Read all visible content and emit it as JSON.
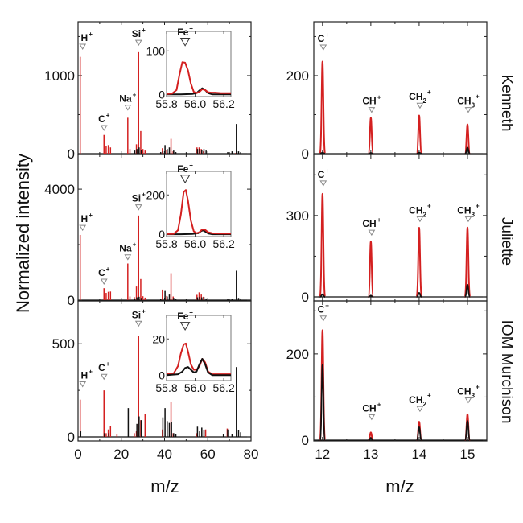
{
  "figure": {
    "ylabel": "Normalized intensity",
    "xlabel_left": "m/z",
    "xlabel_right": "m/z",
    "colors": {
      "sample": "#d42020",
      "reference": "#111111",
      "marker": "#888888"
    }
  },
  "chart_data": [
    {
      "type": "bar",
      "panel": "left-top",
      "sample": "Kenneth",
      "xlim": [
        0,
        80
      ],
      "ylim": [
        0,
        1690
      ],
      "xticks": [
        0,
        20,
        40,
        60,
        80
      ],
      "yticks": [
        0,
        1000
      ],
      "ytick_labels": [
        "0",
        "1000"
      ],
      "series": [
        {
          "name": "sample",
          "color": "red",
          "x": [
            1,
            12,
            13,
            14,
            15,
            23,
            24,
            26,
            27,
            28,
            29,
            30,
            31,
            39,
            41,
            43,
            44,
            55,
            56,
            57,
            58,
            73
          ],
          "values": [
            1240,
            240,
            100,
            110,
            80,
            460,
            60,
            30,
            120,
            1300,
            290,
            60,
            40,
            70,
            50,
            190,
            30,
            80,
            80,
            60,
            30,
            10
          ]
        },
        {
          "name": "reference",
          "color": "black",
          "x": [
            26,
            27,
            28,
            29,
            38,
            39,
            40,
            41,
            42,
            44,
            45,
            50,
            55,
            56,
            57,
            58,
            59,
            69,
            71,
            73,
            74,
            75
          ],
          "values": [
            40,
            60,
            80,
            50,
            20,
            30,
            110,
            60,
            80,
            40,
            20,
            10,
            60,
            60,
            50,
            60,
            40,
            20,
            30,
            380,
            30,
            20
          ]
        }
      ],
      "annotations": [
        {
          "ion": "H",
          "charge": "+",
          "x": 1,
          "marker_y": 1340
        },
        {
          "ion": "C",
          "charge": "+",
          "x": 12,
          "marker_y": 300
        },
        {
          "ion": "Na",
          "charge": "+",
          "x": 23,
          "marker_y": 560
        },
        {
          "ion": "Si",
          "charge": "+",
          "x": 28,
          "marker_y": 1390
        }
      ],
      "inset": {
        "type": "line",
        "title": "Fe",
        "charge": "+",
        "xlim": [
          55.8,
          56.25
        ],
        "ylim": [
          -5,
          145
        ],
        "xticks": [
          55.8,
          56.0,
          56.2
        ],
        "xtick_labels": [
          "55.8",
          "56.0",
          "56.2"
        ],
        "yticks": [
          0,
          100
        ],
        "ytick_labels": [
          "0",
          "100"
        ],
        "marker_x": 55.93,
        "marker_y": 112,
        "series": [
          {
            "name": "sample",
            "color": "red",
            "x": [
              55.8,
              55.84,
              55.87,
              55.89,
              55.91,
              55.93,
              55.95,
              55.97,
              55.99,
              56.01,
              56.03,
              56.05,
              56.07,
              56.09,
              56.11,
              56.14,
              56.18,
              56.22,
              56.25
            ],
            "values": [
              1,
              2,
              10,
              45,
              74,
              73,
              55,
              25,
              6,
              3,
              6,
              12,
              10,
              5,
              4,
              4,
              3,
              3,
              3
            ]
          },
          {
            "name": "reference",
            "color": "black",
            "x": [
              55.8,
              55.9,
              55.98,
              56.01,
              56.03,
              56.05,
              56.07,
              56.09,
              56.12,
              56.18,
              56.25
            ],
            "values": [
              0,
              0,
              1,
              3,
              9,
              14,
              10,
              3,
              0,
              0,
              0
            ]
          }
        ]
      }
    },
    {
      "type": "bar",
      "panel": "left-middle",
      "sample": "Juliette",
      "xlim": [
        0,
        80
      ],
      "ylim": [
        0,
        5250
      ],
      "xticks": [
        0,
        20,
        40,
        60,
        80
      ],
      "yticks": [
        0,
        4000
      ],
      "ytick_labels": [
        "0",
        "4000"
      ],
      "series": [
        {
          "name": "sample",
          "color": "red",
          "x": [
            1,
            12,
            13,
            14,
            15,
            23,
            24,
            26,
            27,
            28,
            29,
            30,
            31,
            39,
            41,
            43,
            44,
            55,
            56,
            57,
            58
          ],
          "values": [
            2350,
            430,
            260,
            300,
            310,
            1320,
            130,
            110,
            490,
            3050,
            760,
            140,
            90,
            380,
            150,
            970,
            130,
            190,
            280,
            200,
            120
          ]
        },
        {
          "name": "reference",
          "color": "black",
          "x": [
            26,
            27,
            28,
            29,
            38,
            39,
            40,
            41,
            42,
            44,
            45,
            50,
            55,
            56,
            57,
            58,
            59,
            69,
            71,
            73,
            74,
            75
          ],
          "values": [
            60,
            100,
            120,
            80,
            40,
            60,
            330,
            130,
            200,
            80,
            40,
            20,
            100,
            120,
            100,
            110,
            60,
            30,
            50,
            1060,
            80,
            60
          ]
        }
      ],
      "annotations": [
        {
          "ion": "H",
          "charge": "+",
          "x": 1,
          "marker_y": 2520
        },
        {
          "ion": "C",
          "charge": "+",
          "x": 12,
          "marker_y": 580
        },
        {
          "ion": "Na",
          "charge": "+",
          "x": 23,
          "marker_y": 1460
        },
        {
          "ion": "Si",
          "charge": "+",
          "x": 28,
          "marker_y": 3260
        }
      ],
      "inset": {
        "type": "line",
        "title": "Fe",
        "charge": "+",
        "xlim": [
          55.8,
          56.25
        ],
        "ylim": [
          -12,
          320
        ],
        "xticks": [
          55.8,
          56.0,
          56.2
        ],
        "xtick_labels": [
          "55.8",
          "56.0",
          "56.2"
        ],
        "yticks": [
          0,
          200
        ],
        "ytick_labels": [
          "0",
          "200"
        ],
        "marker_x": 55.93,
        "marker_y": 262,
        "series": [
          {
            "name": "sample",
            "color": "red",
            "x": [
              55.8,
              55.85,
              55.88,
              55.9,
              55.92,
              55.935,
              55.95,
              55.97,
              55.99,
              56.01,
              56.03,
              56.05,
              56.07,
              56.09,
              56.12,
              56.16,
              56.2,
              56.25
            ],
            "values": [
              1,
              2,
              20,
              100,
              215,
              225,
              170,
              70,
              15,
              5,
              10,
              25,
              22,
              10,
              5,
              4,
              3,
              3
            ]
          },
          {
            "name": "reference",
            "color": "black",
            "x": [
              55.8,
              55.9,
              55.98,
              56.02,
              56.04,
              56.055,
              56.07,
              56.09,
              56.12,
              56.18,
              56.25
            ],
            "values": [
              0,
              0,
              1,
              5,
              15,
              20,
              14,
              4,
              0,
              0,
              0
            ]
          }
        ]
      }
    },
    {
      "type": "bar",
      "panel": "left-bottom",
      "sample": "IOM Murchison",
      "xlim": [
        0,
        80
      ],
      "ylim": [
        0,
        730
      ],
      "xticks": [
        0,
        20,
        40,
        60,
        80
      ],
      "xtick_labels": [
        "0",
        "20",
        "40",
        "60",
        "80"
      ],
      "yticks": [
        0,
        500
      ],
      "ytick_labels": [
        "0",
        "500"
      ],
      "series": [
        {
          "name": "sample",
          "color": "red",
          "x": [
            1,
            12,
            13,
            14,
            15,
            18,
            26,
            27,
            28,
            29,
            31,
            39,
            43,
            44,
            55,
            59,
            69
          ],
          "values": [
            200,
            250,
            20,
            40,
            60,
            15,
            20,
            30,
            540,
            90,
            125,
            40,
            190,
            20,
            20,
            40,
            45
          ]
        },
        {
          "name": "reference",
          "color": "black",
          "x": [
            1,
            12,
            14,
            23,
            27,
            28,
            29,
            39,
            40,
            41,
            42,
            43,
            44,
            45,
            55,
            56,
            57,
            58,
            67,
            69,
            71,
            73,
            74,
            75
          ],
          "values": [
            30,
            20,
            20,
            155,
            70,
            110,
            90,
            105,
            155,
            85,
            75,
            80,
            20,
            15,
            55,
            30,
            50,
            35,
            15,
            40,
            15,
            375,
            35,
            25
          ]
        }
      ],
      "annotations": [
        {
          "ion": "H",
          "charge": "+",
          "x": 1,
          "marker_y": 270
        },
        {
          "ion": "C",
          "charge": "+",
          "x": 12,
          "marker_y": 310
        },
        {
          "ion": "Si",
          "charge": "+",
          "x": 28,
          "marker_y": 595
        }
      ],
      "inset": {
        "type": "line",
        "title": "Fe",
        "charge": "+",
        "xlim": [
          55.8,
          56.25
        ],
        "ylim": [
          -3,
          33
        ],
        "xticks": [
          55.8,
          56.0,
          56.2
        ],
        "xtick_labels": [
          "55.8",
          "56.0",
          "56.2"
        ],
        "yticks": [
          0,
          20
        ],
        "ytick_labels": [
          "0",
          "20"
        ],
        "marker_x": 55.93,
        "marker_y": 25,
        "series": [
          {
            "name": "sample",
            "color": "red",
            "x": [
              55.8,
              55.85,
              55.88,
              55.9,
              55.92,
              55.935,
              55.95,
              55.97,
              55.99,
              56.01,
              56.03,
              56.05,
              56.07,
              56.09,
              56.12,
              56.16,
              56.2,
              56.25
            ],
            "values": [
              0.5,
              1,
              5,
              12,
              17,
              17.5,
              13,
              6,
              3,
              3,
              5,
              9,
              7,
              2,
              0.5,
              0.5,
              0.5,
              0.5
            ]
          },
          {
            "name": "reference",
            "color": "black",
            "x": [
              55.8,
              55.88,
              55.91,
              55.93,
              55.95,
              55.97,
              55.99,
              56.01,
              56.03,
              56.05,
              56.07,
              56.09,
              56.12,
              56.18,
              56.25
            ],
            "values": [
              0,
              0.5,
              2,
              4,
              4.5,
              3,
              1.5,
              2,
              6,
              9,
              6,
              1.5,
              0,
              0,
              0
            ]
          }
        ]
      }
    },
    {
      "type": "line",
      "panel": "right-top",
      "sample": "Kenneth",
      "xlim": [
        11.82,
        15.4
      ],
      "ylim": [
        0,
        338
      ],
      "xticks": [
        12,
        13,
        14,
        15
      ],
      "yticks": [
        0,
        200
      ],
      "ytick_labels": [
        "0",
        "200"
      ],
      "peaks": [
        {
          "ion": "C",
          "charge": "+",
          "sub": "",
          "x": 12.0,
          "sample": 236,
          "reference": 3,
          "marker_y": 266
        },
        {
          "ion": "CH",
          "charge": "+",
          "sub": "",
          "x": 13.0,
          "sample": 92,
          "reference": 2,
          "marker_y": 106
        },
        {
          "ion": "CH",
          "charge": "+",
          "sub": "2",
          "x": 14.0,
          "sample": 98,
          "reference": 3,
          "marker_y": 117
        },
        {
          "ion": "CH",
          "charge": "+",
          "sub": "3",
          "x": 15.0,
          "sample": 75,
          "reference": 16,
          "marker_y": 106
        }
      ]
    },
    {
      "type": "line",
      "panel": "right-middle",
      "sample": "Juliette",
      "xlim": [
        11.82,
        15.4
      ],
      "ylim": [
        0,
        525
      ],
      "xticks": [
        12,
        13,
        14,
        15
      ],
      "yticks": [
        0,
        300
      ],
      "ytick_labels": [
        "0",
        "300"
      ],
      "peaks": [
        {
          "ion": "C",
          "charge": "+",
          "sub": "",
          "x": 12.0,
          "sample": 380,
          "reference": 10,
          "marker_y": 410
        },
        {
          "ion": "CH",
          "charge": "+",
          "sub": "",
          "x": 13.0,
          "sample": 205,
          "reference": 5,
          "marker_y": 228
        },
        {
          "ion": "CH",
          "charge": "+",
          "sub": "2",
          "x": 14.0,
          "sample": 255,
          "reference": 15,
          "marker_y": 278
        },
        {
          "ion": "CH",
          "charge": "+",
          "sub": "3",
          "x": 15.0,
          "sample": 256,
          "reference": 45,
          "marker_y": 278
        }
      ]
    },
    {
      "type": "line",
      "panel": "right-bottom",
      "sample": "IOM Murchison",
      "xlim": [
        11.82,
        15.4
      ],
      "ylim": [
        -5,
        323
      ],
      "xticks": [
        12,
        13,
        14,
        15
      ],
      "xtick_labels": [
        "12",
        "13",
        "14",
        "15"
      ],
      "yticks": [
        0,
        200
      ],
      "ytick_labels": [
        "0",
        "200"
      ],
      "peaks": [
        {
          "ion": "C",
          "charge": "+",
          "sub": "",
          "x": 12.0,
          "sample": 255,
          "reference": 175,
          "marker_y": 277
        },
        {
          "ion": "CH",
          "charge": "+",
          "sub": "",
          "x": 13.0,
          "sample": 18,
          "reference": 5,
          "marker_y": 48
        },
        {
          "ion": "CH",
          "charge": "+",
          "sub": "2",
          "x": 14.0,
          "sample": 43,
          "reference": 30,
          "marker_y": 67
        },
        {
          "ion": "CH",
          "charge": "+",
          "sub": "3",
          "x": 15.0,
          "sample": 60,
          "reference": 45,
          "marker_y": 87
        }
      ]
    }
  ]
}
